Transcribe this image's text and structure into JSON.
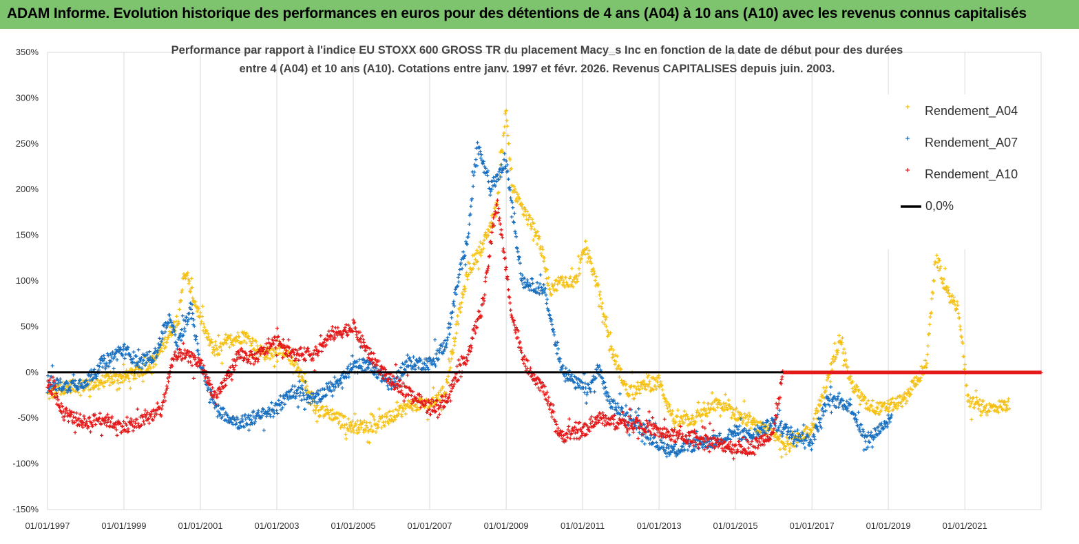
{
  "banner": {
    "title": "ADAM Informe. Evolution historique des performances en euros pour des détentions de 4 ans (A04) à 10 ans (A10) avec les revenus connus capitalisés"
  },
  "chart_data": {
    "type": "scatter",
    "title_line1": "Performance par rapport à l'indice EU STOXX 600 GROSS TR  du placement Macy_s Inc en fonction de la date de début pour des durées",
    "title_line2": "entre 4 (A04) et 10 ans (A10). Cotations entre janv. 1997 et févr. 2026. Revenus CAPITALISES depuis juin. 2003.",
    "x_range": [
      "1997-01-01",
      "2022-12-31"
    ],
    "ylim": [
      -150,
      350
    ],
    "y_ticks": [
      -150,
      -100,
      -50,
      0,
      50,
      100,
      150,
      200,
      250,
      300,
      350
    ],
    "y_tick_labels": [
      "-150%",
      "-100%",
      "-50%",
      "0%",
      "50%",
      "100%",
      "150%",
      "200%",
      "250%",
      "300%",
      "350%"
    ],
    "x_tick_labels": [
      "01/01/1997",
      "01/01/1999",
      "01/01/2001",
      "01/01/2003",
      "01/01/2005",
      "01/01/2007",
      "01/01/2009",
      "01/01/2011",
      "01/01/2013",
      "01/01/2015",
      "01/01/2017",
      "01/01/2019",
      "01/01/2021"
    ],
    "x_tick_dates": [
      "1997-01-01",
      "1999-01-01",
      "2001-01-01",
      "2003-01-01",
      "2005-01-01",
      "2007-01-01",
      "2009-01-01",
      "2011-01-01",
      "2013-01-01",
      "2015-01-01",
      "2017-01-01",
      "2019-01-01",
      "2021-01-01"
    ],
    "grid": "vertical",
    "legend_position": "right",
    "series": [
      {
        "name": "Rendement_A04",
        "color": "#f5c116",
        "end_date": "2022-03-01",
        "points": [
          [
            "1997-01-01",
            -25
          ],
          [
            "1997-07-01",
            -15
          ],
          [
            "1998-01-01",
            -15
          ],
          [
            "1998-06-01",
            -10
          ],
          [
            "1999-01-01",
            -5
          ],
          [
            "1999-06-01",
            0
          ],
          [
            "1999-11-01",
            15
          ],
          [
            "2000-03-01",
            40
          ],
          [
            "2000-06-01",
            60
          ],
          [
            "2000-08-01",
            110
          ],
          [
            "2000-11-01",
            80
          ],
          [
            "2001-03-01",
            40
          ],
          [
            "2001-06-01",
            20
          ],
          [
            "2001-10-01",
            35
          ],
          [
            "2002-03-01",
            40
          ],
          [
            "2002-09-01",
            20
          ],
          [
            "2003-03-01",
            25
          ],
          [
            "2003-07-01",
            10
          ],
          [
            "2004-01-01",
            -40
          ],
          [
            "2004-06-01",
            -45
          ],
          [
            "2005-01-01",
            -60
          ],
          [
            "2005-07-01",
            -58
          ],
          [
            "2006-01-01",
            -50
          ],
          [
            "2006-07-01",
            -35
          ],
          [
            "2007-01-01",
            -35
          ],
          [
            "2007-06-01",
            -20
          ],
          [
            "2007-10-01",
            60
          ],
          [
            "2008-01-01",
            110
          ],
          [
            "2008-06-01",
            140
          ],
          [
            "2008-10-01",
            180
          ],
          [
            "2009-01-01",
            290
          ],
          [
            "2009-03-01",
            200
          ],
          [
            "2009-06-01",
            180
          ],
          [
            "2009-11-01",
            150
          ],
          [
            "2010-03-01",
            90
          ],
          [
            "2010-06-01",
            100
          ],
          [
            "2010-11-01",
            100
          ],
          [
            "2011-02-01",
            140
          ],
          [
            "2011-06-01",
            90
          ],
          [
            "2011-10-01",
            25
          ],
          [
            "2012-03-01",
            -20
          ],
          [
            "2012-09-01",
            -15
          ],
          [
            "2013-01-01",
            -10
          ],
          [
            "2013-06-01",
            -55
          ],
          [
            "2014-01-01",
            -50
          ],
          [
            "2014-07-01",
            -35
          ],
          [
            "2015-01-01",
            -45
          ],
          [
            "2015-06-01",
            -55
          ],
          [
            "2016-01-01",
            -70
          ],
          [
            "2016-06-01",
            -80
          ],
          [
            "2017-01-01",
            -60
          ],
          [
            "2017-05-01",
            -20
          ],
          [
            "2017-10-01",
            40
          ],
          [
            "2018-01-01",
            -10
          ],
          [
            "2018-06-01",
            -35
          ],
          [
            "2018-11-01",
            -40
          ],
          [
            "2019-06-01",
            -30
          ],
          [
            "2020-01-01",
            10
          ],
          [
            "2020-04-01",
            130
          ],
          [
            "2020-07-01",
            90
          ],
          [
            "2020-11-01",
            70
          ],
          [
            "2021-02-01",
            -30
          ],
          [
            "2021-08-01",
            -40
          ],
          [
            "2022-03-01",
            -35
          ]
        ]
      },
      {
        "name": "Rendement_A07",
        "color": "#1a70c0",
        "end_date": "2019-02-01",
        "points": [
          [
            "1997-01-01",
            -10
          ],
          [
            "1997-07-01",
            -15
          ],
          [
            "1998-01-01",
            -10
          ],
          [
            "1998-06-01",
            10
          ],
          [
            "1999-01-01",
            25
          ],
          [
            "1999-06-01",
            10
          ],
          [
            "1999-11-01",
            20
          ],
          [
            "2000-03-01",
            60
          ],
          [
            "2000-06-01",
            30
          ],
          [
            "2000-10-01",
            70
          ],
          [
            "2001-01-01",
            10
          ],
          [
            "2001-06-01",
            -40
          ],
          [
            "2002-01-01",
            -55
          ],
          [
            "2002-06-01",
            -50
          ],
          [
            "2003-01-01",
            -40
          ],
          [
            "2003-06-01",
            -20
          ],
          [
            "2004-01-01",
            -30
          ],
          [
            "2004-06-01",
            -15
          ],
          [
            "2005-01-01",
            5
          ],
          [
            "2005-06-01",
            10
          ],
          [
            "2006-01-01",
            -15
          ],
          [
            "2006-06-01",
            10
          ],
          [
            "2007-01-01",
            10
          ],
          [
            "2007-06-01",
            30
          ],
          [
            "2007-10-01",
            100
          ],
          [
            "2008-01-01",
            150
          ],
          [
            "2008-04-01",
            250
          ],
          [
            "2008-08-01",
            200
          ],
          [
            "2009-01-01",
            230
          ],
          [
            "2009-06-01",
            100
          ],
          [
            "2010-01-01",
            90
          ],
          [
            "2010-06-01",
            10
          ],
          [
            "2010-10-01",
            -10
          ],
          [
            "2011-03-01",
            -20
          ],
          [
            "2011-06-01",
            5
          ],
          [
            "2011-09-01",
            -30
          ],
          [
            "2012-03-01",
            -50
          ],
          [
            "2012-09-01",
            -65
          ],
          [
            "2013-01-01",
            -80
          ],
          [
            "2013-06-01",
            -85
          ],
          [
            "2014-01-01",
            -78
          ],
          [
            "2014-07-01",
            -75
          ],
          [
            "2015-01-01",
            -65
          ],
          [
            "2015-06-01",
            -70
          ],
          [
            "2016-01-01",
            -55
          ],
          [
            "2016-06-01",
            -65
          ],
          [
            "2017-01-01",
            -75
          ],
          [
            "2017-06-01",
            -30
          ],
          [
            "2018-01-01",
            -35
          ],
          [
            "2018-06-01",
            -75
          ],
          [
            "2019-02-01",
            -50
          ]
        ]
      },
      {
        "name": "Rendement_A10",
        "color": "#e41a1a",
        "end_date": "2022-12-31",
        "points": [
          [
            "1997-01-01",
            -10
          ],
          [
            "1997-06-01",
            -45
          ],
          [
            "1998-01-01",
            -55
          ],
          [
            "1998-06-01",
            -50
          ],
          [
            "1999-01-01",
            -60
          ],
          [
            "1999-06-01",
            -55
          ],
          [
            "2000-01-01",
            -40
          ],
          [
            "2000-04-01",
            10
          ],
          [
            "2000-07-01",
            20
          ],
          [
            "2001-01-01",
            10
          ],
          [
            "2001-06-01",
            -30
          ],
          [
            "2002-01-01",
            20
          ],
          [
            "2002-06-01",
            15
          ],
          [
            "2003-01-01",
            35
          ],
          [
            "2003-06-01",
            20
          ],
          [
            "2004-01-01",
            20
          ],
          [
            "2004-06-01",
            40
          ],
          [
            "2005-01-01",
            50
          ],
          [
            "2005-06-01",
            20
          ],
          [
            "2006-01-01",
            -10
          ],
          [
            "2006-06-01",
            -20
          ],
          [
            "2007-01-01",
            -40
          ],
          [
            "2007-06-01",
            -30
          ],
          [
            "2008-01-01",
            20
          ],
          [
            "2008-06-01",
            80
          ],
          [
            "2008-10-01",
            190
          ],
          [
            "2009-03-01",
            60
          ],
          [
            "2009-07-01",
            10
          ],
          [
            "2010-01-01",
            -20
          ],
          [
            "2010-06-01",
            -70
          ],
          [
            "2011-01-01",
            -65
          ],
          [
            "2011-06-01",
            -50
          ],
          [
            "2012-01-01",
            -55
          ],
          [
            "2012-06-01",
            -55
          ],
          [
            "2013-01-01",
            -65
          ],
          [
            "2013-06-01",
            -70
          ],
          [
            "2014-01-01",
            -72
          ],
          [
            "2014-07-01",
            -78
          ],
          [
            "2015-01-01",
            -82
          ],
          [
            "2015-06-01",
            -82
          ],
          [
            "2016-01-01",
            -65
          ],
          [
            "2016-04-01",
            0
          ],
          [
            "2022-12-31",
            0
          ]
        ]
      }
    ],
    "reference_line": {
      "name": "0,0%",
      "value": 0,
      "color": "#000000"
    }
  }
}
